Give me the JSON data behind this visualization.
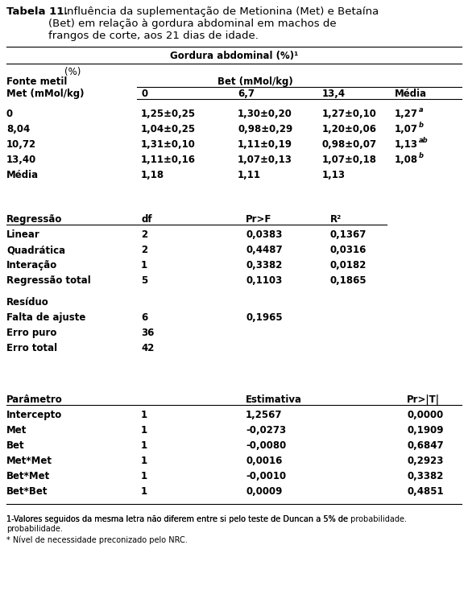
{
  "title_bold": "Tabela 11.",
  "title_rest": " Influência da suplementação de Metionina (Met) e Betaína\n        (Bet) em relação à gordura abdominal em machos de\n        frangos de corte, aos 21 dias de idade.",
  "section_header": "Gordura abdominal (%)¹",
  "pct_label": "(%)",
  "col_fonte": "Fonte metil",
  "col_bet_header": "Bet (mMol/kg)",
  "col_met": "Met (mMol/kg)",
  "col_bet_vals": [
    "0",
    "6,7",
    "13,4",
    "Média"
  ],
  "data_rows": [
    [
      "0",
      "1,25±0,25",
      "1,30±0,20",
      "1,27±0,10",
      "1,27",
      "a"
    ],
    [
      "8,04",
      "1,04±0,25",
      "0,98±0,29",
      "1,20±0,06",
      "1,07",
      "b"
    ],
    [
      "10,72",
      "1,31±0,10",
      "1,11±0,19",
      "0,98±0,07",
      "1,13",
      "ab"
    ],
    [
      "13,40",
      "1,11±0,16",
      "1,07±0,13",
      "1,07±0,18",
      "1,08",
      "b"
    ]
  ],
  "media_row": [
    "Média",
    "1,18",
    "1,11",
    "1,13"
  ],
  "reg_header": [
    "Regressão",
    "df",
    "Pr>F",
    "R²"
  ],
  "reg_rows": [
    [
      "Linear",
      "2",
      "0,0383",
      "0,1367"
    ],
    [
      "Quadrática",
      "2",
      "0,4487",
      "0,0316"
    ],
    [
      "Interação",
      "1",
      "0,3382",
      "0,0182"
    ],
    [
      "Regressão total",
      "5",
      "0,1103",
      "0,1865"
    ]
  ],
  "residuo_header": "Resíduo",
  "residuo_rows": [
    [
      "Falta de ajuste",
      "6",
      "0,1965",
      ""
    ],
    [
      "Erro puro",
      "36",
      "",
      ""
    ],
    [
      "Erro total",
      "42",
      "",
      ""
    ]
  ],
  "param_header": [
    "Parâmetro",
    "",
    "Estimativa",
    "Pr>|T|"
  ],
  "param_rows": [
    [
      "Intercepto",
      "1",
      "1,2567",
      "0,0000"
    ],
    [
      "Met",
      "1",
      "-0,0273",
      "0,1909"
    ],
    [
      "Bet",
      "1",
      "-0,0080",
      "0,6847"
    ],
    [
      "Met*Met",
      "1",
      "0,0016",
      "0,2923"
    ],
    [
      "Bet*Met",
      "1",
      "-0,0010",
      "0,3382"
    ],
    [
      "Bet*Bet",
      "1",
      "0,0009",
      "0,4851"
    ]
  ],
  "footnote1": "1-Valores seguidos da mesma letra não diferem entre si pelo teste de Duncan a 5% de probabilidade.",
  "footnote2": "* Nível de necessidade preconizado pelo NRC.",
  "bg_color": "#ffffff",
  "text_color": "#000000",
  "line_color": "#000000",
  "font_size": 8.5,
  "title_font_size": 9.5
}
